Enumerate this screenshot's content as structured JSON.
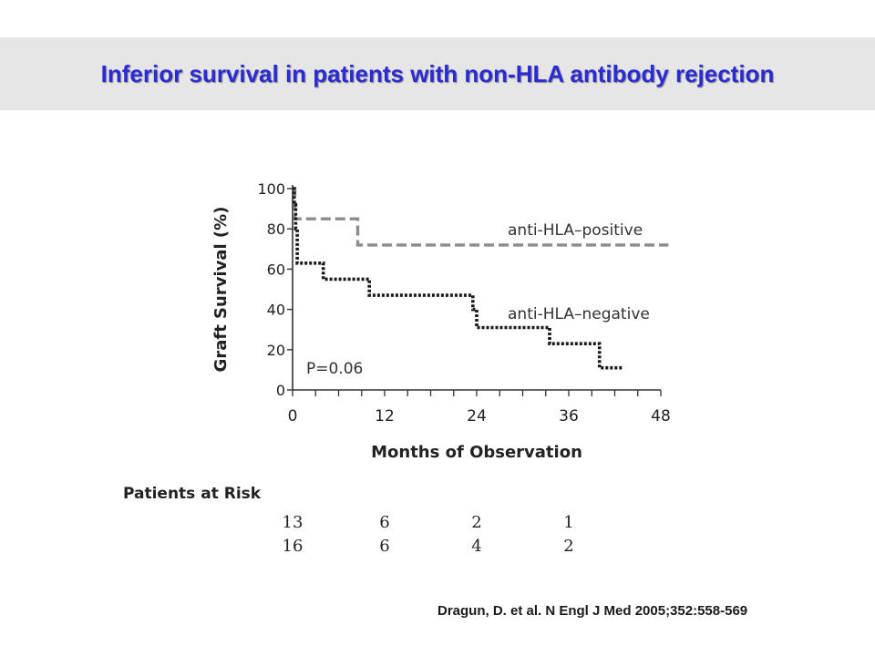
{
  "slide": {
    "title": "Inferior survival in patients with non-HLA antibody rejection",
    "citation": "Dragun, D. et al. N Engl J Med 2005;352:558-569"
  },
  "colors": {
    "title": "#2b2bd6",
    "title_band": "#e6e6e6",
    "positive_line": "#8c8c8c",
    "negative_line": "#1a1a1a",
    "axis": "#333333"
  },
  "chart_data": {
    "type": "line",
    "title": "",
    "xlabel": "Months of Observation",
    "ylabel": "Graft Survival (%)",
    "xlim": [
      0,
      48
    ],
    "ylim": [
      0,
      100
    ],
    "x_ticks": [
      0,
      12,
      24,
      36,
      48
    ],
    "y_ticks": [
      0,
      20,
      40,
      60,
      80,
      100
    ],
    "x_minor_step": 3,
    "annotation": "P=0.06",
    "series": [
      {
        "name": "anti-HLA–positive",
        "style": "dashed",
        "points": [
          [
            0,
            100
          ],
          [
            0.3,
            100
          ],
          [
            0.3,
            85
          ],
          [
            8.5,
            85
          ],
          [
            8.5,
            72
          ],
          [
            49,
            72
          ]
        ]
      },
      {
        "name": "anti-HLA–negative",
        "style": "dotted",
        "points": [
          [
            0,
            100
          ],
          [
            0.2,
            100
          ],
          [
            0.2,
            92
          ],
          [
            0.4,
            92
          ],
          [
            0.4,
            80
          ],
          [
            0.6,
            80
          ],
          [
            0.6,
            63
          ],
          [
            4,
            63
          ],
          [
            4,
            55
          ],
          [
            10,
            55
          ],
          [
            10,
            47
          ],
          [
            23.5,
            47
          ],
          [
            23.5,
            40
          ],
          [
            24,
            40
          ],
          [
            24,
            31
          ],
          [
            33.5,
            31
          ],
          [
            33.5,
            23
          ],
          [
            40,
            23
          ],
          [
            40,
            11
          ],
          [
            43,
            11
          ]
        ]
      }
    ],
    "risk_table": {
      "title": "Patients at Risk",
      "columns_x": [
        0,
        12,
        24,
        36
      ],
      "rows": [
        {
          "series": "anti-HLA–positive",
          "values": [
            "13",
            "6",
            "2",
            "1"
          ]
        },
        {
          "series": "anti-HLA–negative",
          "values": [
            "16",
            "6",
            "4",
            "2"
          ]
        }
      ]
    }
  }
}
